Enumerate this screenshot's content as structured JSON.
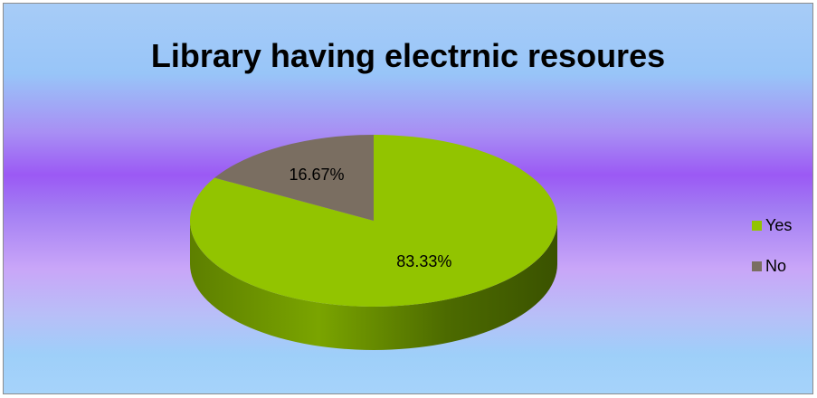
{
  "chart_data": {
    "type": "pie",
    "title": "Library having electrnic resoures",
    "categories": [
      "Yes",
      "No"
    ],
    "values": [
      83.33,
      16.67
    ],
    "data_labels": [
      "83.33%",
      "16.67%"
    ],
    "colors": [
      "#92c400",
      "#7a6e61"
    ],
    "legend_position": "right",
    "three_d": true
  }
}
